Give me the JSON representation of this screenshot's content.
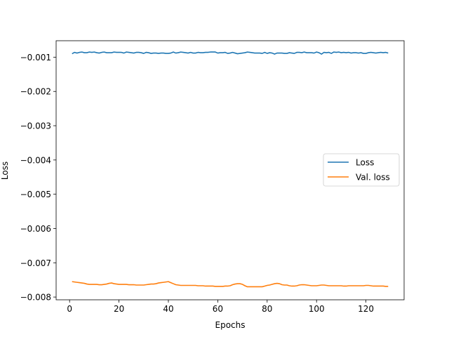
{
  "chart_data": {
    "type": "line",
    "xlabel": "Epochs",
    "ylabel": "Loss",
    "xlim": [
      -5.45,
      135.45
    ],
    "ylim": [
      -0.00808,
      -0.00052
    ],
    "xticks": [
      0,
      20,
      40,
      60,
      80,
      100,
      120
    ],
    "yticks": [
      -0.001,
      -0.002,
      -0.003,
      -0.004,
      -0.005,
      -0.006,
      -0.007,
      -0.008
    ],
    "ytick_labels": [
      "−0.001",
      "−0.002",
      "−0.003",
      "−0.004",
      "−0.005",
      "−0.006",
      "−0.007",
      "−0.008"
    ],
    "grid": false,
    "legend_position": "center-right",
    "series": [
      {
        "name": "Loss",
        "color": "#1f77b4",
        "x": [
          1,
          2,
          3,
          4,
          5,
          6,
          7,
          8,
          9,
          10,
          11,
          12,
          13,
          14,
          15,
          16,
          17,
          18,
          19,
          20,
          21,
          22,
          23,
          24,
          25,
          26,
          27,
          28,
          29,
          30,
          31,
          32,
          33,
          34,
          35,
          36,
          37,
          38,
          39,
          40,
          41,
          42,
          43,
          44,
          45,
          46,
          47,
          48,
          49,
          50,
          51,
          52,
          53,
          54,
          55,
          56,
          57,
          58,
          59,
          60,
          61,
          62,
          63,
          64,
          65,
          66,
          67,
          68,
          69,
          70,
          71,
          72,
          73,
          74,
          75,
          76,
          77,
          78,
          79,
          80,
          81,
          82,
          83,
          84,
          85,
          86,
          87,
          88,
          89,
          90,
          91,
          92,
          93,
          94,
          95,
          96,
          97,
          98,
          99,
          100,
          101,
          102,
          103,
          104,
          105,
          106,
          107,
          108,
          109,
          110,
          111,
          112,
          113,
          114,
          115,
          116,
          117,
          118,
          119,
          120,
          121,
          122,
          123,
          124,
          125,
          126,
          127,
          128,
          129
        ],
        "y": [
          -0.0009,
          -0.00086,
          -0.00088,
          -0.00086,
          -0.00085,
          -0.00087,
          -0.00087,
          -0.00085,
          -0.00086,
          -0.00085,
          -0.00087,
          -0.00088,
          -0.00086,
          -0.00085,
          -0.00087,
          -0.00087,
          -0.00087,
          -0.00085,
          -0.00086,
          -0.00086,
          -0.00086,
          -0.00088,
          -0.00085,
          -0.00086,
          -0.00087,
          -0.00088,
          -0.00086,
          -0.00086,
          -0.00087,
          -0.00089,
          -0.00086,
          -0.00087,
          -0.00089,
          -0.00088,
          -0.00088,
          -0.00089,
          -0.00088,
          -0.00088,
          -0.00089,
          -0.00089,
          -0.00088,
          -0.00085,
          -0.00088,
          -0.00087,
          -0.00085,
          -0.00086,
          -0.00087,
          -0.00088,
          -0.00086,
          -0.00088,
          -0.00088,
          -0.00086,
          -0.00087,
          -0.00087,
          -0.00086,
          -0.00086,
          -0.00085,
          -0.00085,
          -0.00085,
          -0.00088,
          -0.00087,
          -0.00087,
          -0.00086,
          -0.00089,
          -0.00088,
          -0.00086,
          -0.00088,
          -0.0009,
          -0.00089,
          -0.00088,
          -0.00087,
          -0.00085,
          -0.00086,
          -0.00087,
          -0.00088,
          -0.00088,
          -0.00088,
          -0.00089,
          -0.00086,
          -0.00089,
          -0.00087,
          -0.00088,
          -0.00091,
          -0.00088,
          -0.00088,
          -0.00088,
          -0.00089,
          -0.00089,
          -0.00087,
          -0.00088,
          -0.00089,
          -0.00086,
          -0.00086,
          -0.00087,
          -0.00085,
          -0.00087,
          -0.00087,
          -0.00087,
          -0.00088,
          -0.00085,
          -0.00087,
          -0.00091,
          -0.00086,
          -0.00087,
          -0.00086,
          -0.00089,
          -0.00085,
          -0.00086,
          -0.00085,
          -0.00087,
          -0.00086,
          -0.00087,
          -0.00086,
          -0.00088,
          -0.00087,
          -0.00087,
          -0.00088,
          -0.00087,
          -0.00089,
          -0.00089,
          -0.00087,
          -0.00086,
          -0.00087,
          -0.00088,
          -0.00087,
          -0.00086,
          -0.00087,
          -0.00086,
          -0.00088
        ]
      },
      {
        "name": "Val. loss",
        "color": "#ff7f0e",
        "x": [
          1,
          2,
          3,
          4,
          5,
          6,
          7,
          8,
          9,
          10,
          11,
          12,
          13,
          14,
          15,
          16,
          17,
          18,
          19,
          20,
          21,
          22,
          23,
          24,
          25,
          26,
          27,
          28,
          29,
          30,
          31,
          32,
          33,
          34,
          35,
          36,
          37,
          38,
          39,
          40,
          41,
          42,
          43,
          44,
          45,
          46,
          47,
          48,
          49,
          50,
          51,
          52,
          53,
          54,
          55,
          56,
          57,
          58,
          59,
          60,
          61,
          62,
          63,
          64,
          65,
          66,
          67,
          68,
          69,
          70,
          71,
          72,
          73,
          74,
          75,
          76,
          77,
          78,
          79,
          80,
          81,
          82,
          83,
          84,
          85,
          86,
          87,
          88,
          89,
          90,
          91,
          92,
          93,
          94,
          95,
          96,
          97,
          98,
          99,
          100,
          101,
          102,
          103,
          104,
          105,
          106,
          107,
          108,
          109,
          110,
          111,
          112,
          113,
          114,
          115,
          116,
          117,
          118,
          119,
          120,
          121,
          122,
          123,
          124,
          125,
          126,
          127,
          128,
          129
        ],
        "y": [
          -0.00755,
          -0.00756,
          -0.00757,
          -0.00758,
          -0.00759,
          -0.0076,
          -0.00762,
          -0.00763,
          -0.00763,
          -0.00763,
          -0.00763,
          -0.00764,
          -0.00764,
          -0.00763,
          -0.00762,
          -0.0076,
          -0.00759,
          -0.00761,
          -0.00762,
          -0.00763,
          -0.00763,
          -0.00763,
          -0.00763,
          -0.00764,
          -0.00764,
          -0.00764,
          -0.00765,
          -0.00765,
          -0.00765,
          -0.00765,
          -0.00764,
          -0.00763,
          -0.00762,
          -0.00762,
          -0.00761,
          -0.00759,
          -0.00758,
          -0.00757,
          -0.00756,
          -0.00755,
          -0.00758,
          -0.00761,
          -0.00764,
          -0.00765,
          -0.00766,
          -0.00766,
          -0.00766,
          -0.00766,
          -0.00766,
          -0.00766,
          -0.00766,
          -0.00767,
          -0.00767,
          -0.00767,
          -0.00768,
          -0.00768,
          -0.00768,
          -0.00768,
          -0.00769,
          -0.00769,
          -0.00769,
          -0.00769,
          -0.00768,
          -0.00768,
          -0.00767,
          -0.00764,
          -0.00762,
          -0.00761,
          -0.00761,
          -0.00763,
          -0.00767,
          -0.0077,
          -0.0077,
          -0.0077,
          -0.0077,
          -0.0077,
          -0.0077,
          -0.0077,
          -0.00768,
          -0.00766,
          -0.00765,
          -0.00763,
          -0.00761,
          -0.0076,
          -0.00761,
          -0.00764,
          -0.00765,
          -0.00765,
          -0.00767,
          -0.00768,
          -0.00768,
          -0.00767,
          -0.00765,
          -0.00764,
          -0.00764,
          -0.00765,
          -0.00766,
          -0.00767,
          -0.00767,
          -0.00767,
          -0.00766,
          -0.00765,
          -0.00765,
          -0.00766,
          -0.00767,
          -0.00767,
          -0.00767,
          -0.00767,
          -0.00767,
          -0.00767,
          -0.00768,
          -0.00768,
          -0.00767,
          -0.00767,
          -0.00767,
          -0.00767,
          -0.00767,
          -0.00767,
          -0.00767,
          -0.00766,
          -0.00766,
          -0.00767,
          -0.00768,
          -0.00768,
          -0.00768,
          -0.00768,
          -0.00768,
          -0.00769,
          -0.00769
        ]
      }
    ]
  }
}
